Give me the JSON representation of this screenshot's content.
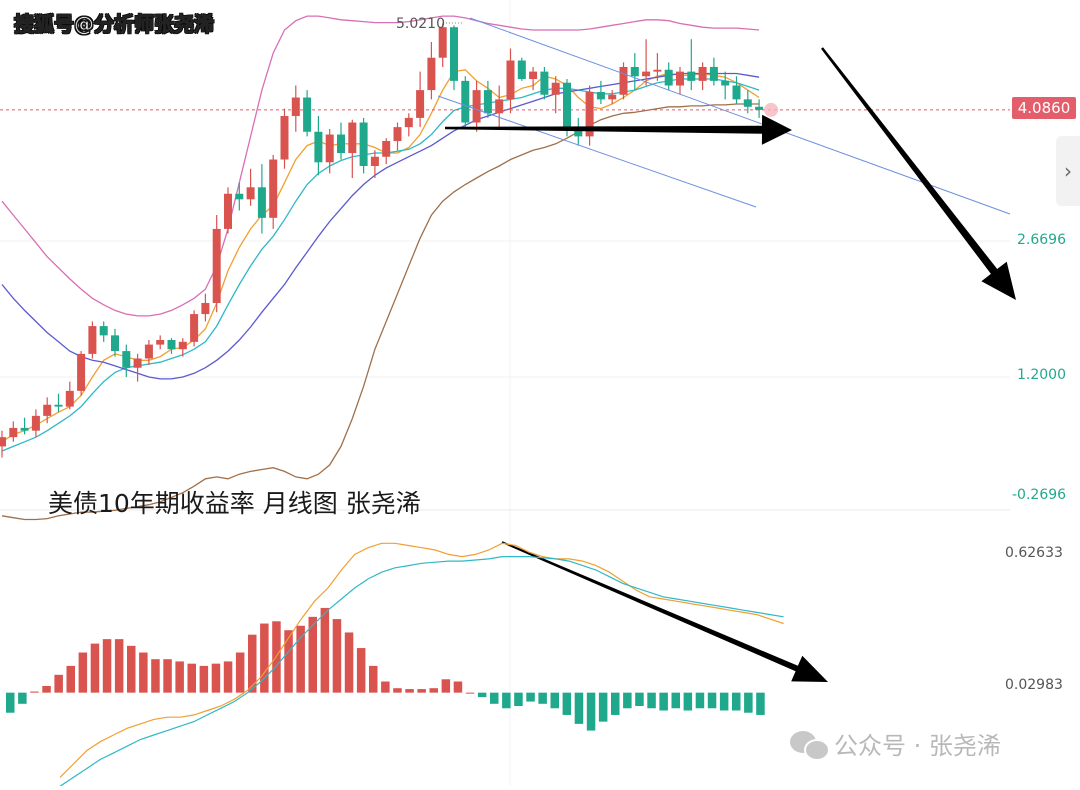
{
  "watermark_top": "搜狐号@分析师张尧浠",
  "watermark_bottom": "公众号 · 张尧浠",
  "watermark_bottom_icon": "wechat-icon",
  "chart_data": [
    {
      "type": "candlestick",
      "title": "美债10年期收益率 月线图 张尧浠",
      "y_ticks": [
        "2.6696",
        "1.2000",
        "-0.2696"
      ],
      "ylim": [
        -0.2696,
        5.15
      ],
      "y_tick_color": "#21a98e",
      "last_price_label": "4.0860",
      "last_price": 4.086,
      "high_label": "5.0210",
      "high_value": 5.021,
      "up_color": "#d9534f",
      "down_color": "#1fa88c",
      "candles": [
        [
          0.45,
          0.62,
          0.33,
          0.55
        ],
        [
          0.55,
          0.72,
          0.5,
          0.65
        ],
        [
          0.65,
          0.76,
          0.58,
          0.62
        ],
        [
          0.62,
          0.85,
          0.55,
          0.78
        ],
        [
          0.78,
          0.98,
          0.7,
          0.9
        ],
        [
          0.9,
          1.02,
          0.82,
          0.88
        ],
        [
          0.88,
          1.15,
          0.85,
          1.05
        ],
        [
          1.05,
          1.48,
          1.0,
          1.45
        ],
        [
          1.45,
          1.8,
          1.4,
          1.75
        ],
        [
          1.75,
          1.8,
          1.58,
          1.65
        ],
        [
          1.65,
          1.72,
          1.42,
          1.48
        ],
        [
          1.48,
          1.55,
          1.2,
          1.3
        ],
        [
          1.3,
          1.45,
          1.15,
          1.4
        ],
        [
          1.4,
          1.6,
          1.33,
          1.55
        ],
        [
          1.55,
          1.65,
          1.5,
          1.6
        ],
        [
          1.6,
          1.62,
          1.45,
          1.5
        ],
        [
          1.5,
          1.62,
          1.42,
          1.58
        ],
        [
          1.58,
          1.92,
          1.53,
          1.88
        ],
        [
          1.88,
          2.1,
          1.8,
          2.0
        ],
        [
          2.0,
          2.95,
          1.9,
          2.8
        ],
        [
          2.8,
          3.25,
          2.75,
          3.18
        ],
        [
          3.18,
          3.3,
          3.0,
          3.12
        ],
        [
          3.12,
          3.45,
          3.05,
          3.25
        ],
        [
          3.25,
          3.5,
          2.75,
          2.92
        ],
        [
          2.92,
          3.6,
          2.8,
          3.55
        ],
        [
          3.55,
          4.1,
          3.45,
          4.02
        ],
        [
          4.02,
          4.35,
          3.85,
          4.22
        ],
        [
          4.22,
          4.3,
          3.8,
          3.85
        ],
        [
          3.85,
          4.02,
          3.38,
          3.52
        ],
        [
          3.52,
          3.88,
          3.4,
          3.82
        ],
        [
          3.82,
          3.95,
          3.55,
          3.62
        ],
        [
          3.62,
          3.98,
          3.35,
          3.95
        ],
        [
          3.95,
          4.0,
          3.4,
          3.48
        ],
        [
          3.48,
          3.65,
          3.35,
          3.58
        ],
        [
          3.58,
          3.78,
          3.5,
          3.75
        ],
        [
          3.75,
          3.95,
          3.65,
          3.9
        ],
        [
          3.9,
          4.05,
          3.8,
          4.0
        ],
        [
          4.0,
          4.5,
          3.9,
          4.3
        ],
        [
          4.3,
          4.82,
          4.2,
          4.65
        ],
        [
          4.65,
          5.02,
          4.55,
          4.98
        ],
        [
          4.98,
          5.0,
          4.3,
          4.4
        ],
        [
          4.4,
          4.45,
          3.9,
          3.95
        ],
        [
          3.95,
          4.4,
          3.85,
          4.3
        ],
        [
          4.3,
          4.4,
          4.0,
          4.05
        ],
        [
          4.05,
          4.35,
          3.9,
          4.2
        ],
        [
          4.2,
          4.75,
          4.05,
          4.62
        ],
        [
          4.62,
          4.65,
          4.4,
          4.42
        ],
        [
          4.42,
          4.55,
          4.3,
          4.5
        ],
        [
          4.5,
          4.55,
          4.2,
          4.25
        ],
        [
          4.25,
          4.45,
          4.05,
          4.38
        ],
        [
          4.38,
          4.42,
          3.8,
          3.9
        ],
        [
          3.9,
          4.0,
          3.7,
          3.8
        ],
        [
          3.8,
          4.35,
          3.7,
          4.28
        ],
        [
          4.28,
          4.4,
          4.15,
          4.2
        ],
        [
          4.2,
          4.3,
          4.15,
          4.25
        ],
        [
          4.25,
          4.6,
          4.2,
          4.55
        ],
        [
          4.55,
          4.7,
          4.3,
          4.45
        ],
        [
          4.45,
          4.85,
          4.35,
          4.5
        ],
        [
          4.5,
          4.7,
          4.4,
          4.52
        ],
        [
          4.52,
          4.6,
          4.3,
          4.35
        ],
        [
          4.35,
          4.55,
          4.25,
          4.5
        ],
        [
          4.5,
          4.85,
          4.3,
          4.4
        ],
        [
          4.4,
          4.6,
          4.3,
          4.55
        ],
        [
          4.55,
          4.65,
          4.35,
          4.4
        ],
        [
          4.4,
          4.5,
          4.2,
          4.35
        ],
        [
          4.35,
          4.45,
          4.15,
          4.2
        ],
        [
          4.2,
          4.3,
          4.05,
          4.12
        ],
        [
          4.12,
          4.2,
          4.0,
          4.086
        ]
      ],
      "series": [
        {
          "color": "#f0a030",
          "values": [
            0.5,
            0.58,
            0.62,
            0.68,
            0.75,
            0.82,
            0.88,
            1.0,
            1.2,
            1.38,
            1.45,
            1.42,
            1.38,
            1.38,
            1.42,
            1.5,
            1.52,
            1.6,
            1.72,
            2.0,
            2.35,
            2.6,
            2.8,
            2.95,
            3.05,
            3.3,
            3.55,
            3.7,
            3.75,
            3.7,
            3.72,
            3.72,
            3.72,
            3.68,
            3.62,
            3.62,
            3.68,
            3.82,
            4.05,
            4.3,
            4.5,
            4.52,
            4.4,
            4.32,
            4.22,
            4.25,
            4.32,
            4.35,
            4.45,
            4.42,
            4.35,
            4.22,
            4.12,
            4.1,
            4.15,
            4.22,
            4.3,
            4.4,
            4.45,
            4.48,
            4.46,
            4.46,
            4.48,
            4.46,
            4.44,
            4.38,
            4.3,
            4.22
          ]
        },
        {
          "color": "#2fb8c8",
          "values": [
            0.4,
            0.45,
            0.5,
            0.55,
            0.62,
            0.7,
            0.78,
            0.88,
            1.02,
            1.15,
            1.25,
            1.3,
            1.32,
            1.34,
            1.36,
            1.4,
            1.44,
            1.5,
            1.58,
            1.75,
            1.98,
            2.2,
            2.4,
            2.58,
            2.72,
            2.9,
            3.1,
            3.28,
            3.4,
            3.48,
            3.54,
            3.58,
            3.6,
            3.62,
            3.62,
            3.64,
            3.66,
            3.72,
            3.82,
            3.96,
            4.08,
            4.12,
            4.14,
            4.16,
            4.18,
            4.2,
            4.22,
            4.26,
            4.3,
            4.32,
            4.32,
            4.3,
            4.28,
            4.26,
            4.26,
            4.28,
            4.3,
            4.34,
            4.38,
            4.4,
            4.42,
            4.42,
            4.42,
            4.42,
            4.4,
            4.38,
            4.34,
            4.3
          ]
        },
        {
          "color": "#5a5ad0",
          "values": [
            2.2,
            2.05,
            1.92,
            1.8,
            1.68,
            1.58,
            1.48,
            1.42,
            1.38,
            1.36,
            1.32,
            1.28,
            1.24,
            1.2,
            1.18,
            1.18,
            1.2,
            1.24,
            1.3,
            1.38,
            1.48,
            1.6,
            1.74,
            1.9,
            2.05,
            2.2,
            2.38,
            2.55,
            2.72,
            2.88,
            3.02,
            3.16,
            3.28,
            3.38,
            3.46,
            3.52,
            3.58,
            3.64,
            3.7,
            3.78,
            3.86,
            3.92,
            3.98,
            4.02,
            4.06,
            4.1,
            4.14,
            4.18,
            4.22,
            4.26,
            4.28,
            4.3,
            4.32,
            4.34,
            4.36,
            4.38,
            4.4,
            4.42,
            4.44,
            4.46,
            4.48,
            4.48,
            4.48,
            4.48,
            4.48,
            4.48,
            4.46,
            4.44
          ]
        },
        {
          "color": "#d86fb4",
          "values": [
            3.1,
            2.95,
            2.8,
            2.65,
            2.5,
            2.38,
            2.26,
            2.15,
            2.05,
            1.98,
            1.92,
            1.88,
            1.86,
            1.86,
            1.88,
            1.92,
            1.98,
            2.05,
            2.15,
            2.4,
            2.8,
            3.3,
            3.8,
            4.3,
            4.7,
            4.95,
            5.05,
            5.1,
            5.1,
            5.08,
            5.06,
            5.05,
            5.04,
            5.03,
            5.03,
            5.03,
            5.04,
            5.06,
            5.08,
            5.1,
            5.1,
            5.08,
            5.05,
            5.02,
            5.0,
            4.98,
            4.96,
            4.95,
            4.95,
            4.95,
            4.95,
            4.95,
            4.96,
            4.98,
            5.0,
            5.02,
            5.04,
            5.06,
            5.06,
            5.05,
            5.02,
            5.0,
            4.98,
            4.97,
            4.97,
            4.97,
            4.96,
            4.95
          ]
        },
        {
          "color": "#a0704a",
          "values": [
            -0.3,
            -0.32,
            -0.34,
            -0.34,
            -0.33,
            -0.3,
            -0.28,
            -0.26,
            -0.26,
            -0.25,
            -0.24,
            -0.22,
            -0.2,
            -0.18,
            -0.15,
            -0.1,
            -0.05,
            0.02,
            0.1,
            0.12,
            0.1,
            0.15,
            0.18,
            0.2,
            0.22,
            0.18,
            0.12,
            0.1,
            0.15,
            0.25,
            0.45,
            0.75,
            1.1,
            1.5,
            1.8,
            2.1,
            2.4,
            2.7,
            2.95,
            3.1,
            3.2,
            3.28,
            3.35,
            3.42,
            3.48,
            3.55,
            3.6,
            3.65,
            3.68,
            3.72,
            3.78,
            3.85,
            3.92,
            3.98,
            4.02,
            4.05,
            4.06,
            4.08,
            4.1,
            4.12,
            4.12,
            4.13,
            4.13,
            4.14,
            4.14,
            4.15,
            4.15,
            4.15
          ]
        }
      ]
    },
    {
      "type": "bar",
      "y_ticks": [
        "0.62633",
        "0.02983"
      ],
      "zero_value": 0.02983,
      "top_value": 0.62633,
      "up_color": "#d9534f",
      "down_color": "#1fa88c",
      "values": [
        -0.09,
        -0.05,
        0.005,
        0.03,
        0.08,
        0.12,
        0.18,
        0.22,
        0.24,
        0.24,
        0.21,
        0.18,
        0.15,
        0.15,
        0.14,
        0.13,
        0.12,
        0.13,
        0.14,
        0.18,
        0.26,
        0.31,
        0.32,
        0.28,
        0.3,
        0.34,
        0.38,
        0.33,
        0.27,
        0.2,
        0.12,
        0.05,
        0.02,
        0.016,
        0.016,
        0.02,
        0.06,
        0.05,
        0.0,
        -0.02,
        -0.05,
        -0.07,
        -0.06,
        -0.04,
        -0.05,
        -0.07,
        -0.1,
        -0.14,
        -0.17,
        -0.13,
        -0.1,
        -0.07,
        -0.06,
        -0.07,
        -0.08,
        -0.07,
        -0.08,
        -0.07,
        -0.07,
        -0.08,
        -0.08,
        -0.09,
        -0.1
      ],
      "series": [
        {
          "color": "#f0a030",
          "values": [
            -0.38,
            -0.32,
            -0.26,
            -0.22,
            -0.19,
            -0.16,
            -0.14,
            -0.12,
            -0.11,
            -0.11,
            -0.1,
            -0.08,
            -0.06,
            -0.03,
            0.01,
            0.07,
            0.15,
            0.24,
            0.33,
            0.41,
            0.47,
            0.55,
            0.62,
            0.65,
            0.67,
            0.67,
            0.66,
            0.65,
            0.64,
            0.62,
            0.61,
            0.62,
            0.64,
            0.67,
            0.66,
            0.63,
            0.61,
            0.6,
            0.6,
            0.59,
            0.57,
            0.54,
            0.5,
            0.46,
            0.43,
            0.42,
            0.41,
            0.4,
            0.39,
            0.38,
            0.37,
            0.36,
            0.35,
            0.33,
            0.31
          ]
        },
        {
          "color": "#2fb8c8",
          "values": [
            -0.42,
            -0.38,
            -0.34,
            -0.3,
            -0.27,
            -0.24,
            -0.21,
            -0.19,
            -0.17,
            -0.15,
            -0.13,
            -0.1,
            -0.07,
            -0.04,
            0.0,
            0.05,
            0.11,
            0.18,
            0.25,
            0.31,
            0.37,
            0.42,
            0.47,
            0.51,
            0.54,
            0.56,
            0.57,
            0.58,
            0.585,
            0.59,
            0.59,
            0.595,
            0.6,
            0.61,
            0.61,
            0.61,
            0.605,
            0.6,
            0.59,
            0.57,
            0.55,
            0.52,
            0.49,
            0.47,
            0.45,
            0.43,
            0.42,
            0.41,
            0.4,
            0.39,
            0.38,
            0.37,
            0.36,
            0.35,
            0.34
          ]
        }
      ]
    }
  ]
}
